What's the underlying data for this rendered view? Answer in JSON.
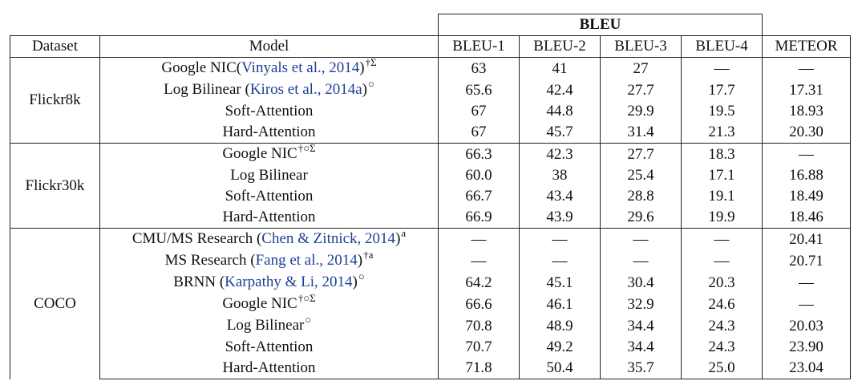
{
  "table": {
    "group_header": "BLEU",
    "columns": [
      "Dataset",
      "Model",
      "BLEU-1",
      "BLEU-2",
      "BLEU-3",
      "BLEU-4",
      "METEOR"
    ],
    "sections": [
      {
        "dataset": "Flickr8k",
        "rows": [
          {
            "model": {
              "pre": "Google NIC(",
              "cite": "Vinyals et al., 2014",
              "post": ")",
              "sup": "†Σ"
            },
            "values": [
              "63",
              "41",
              "27",
              "—",
              "—"
            ],
            "bold": [
              false,
              false,
              false,
              false,
              false
            ]
          },
          {
            "model": {
              "pre": "Log Bilinear (",
              "cite": "Kiros et al., 2014a",
              "post": ")",
              "sup": "○"
            },
            "values": [
              "65.6",
              "42.4",
              "27.7",
              "17.7",
              "17.31"
            ],
            "bold": [
              false,
              false,
              false,
              false,
              false
            ]
          },
          {
            "model": {
              "pre": "Soft-Attention",
              "cite": "",
              "post": "",
              "sup": ""
            },
            "values": [
              "67",
              "44.8",
              "29.9",
              "19.5",
              "18.93"
            ],
            "bold": [
              true,
              false,
              false,
              false,
              false
            ]
          },
          {
            "model": {
              "pre": "Hard-Attention",
              "cite": "",
              "post": "",
              "sup": ""
            },
            "values": [
              "67",
              "45.7",
              "31.4",
              "21.3",
              "20.30"
            ],
            "bold": [
              true,
              true,
              true,
              true,
              true
            ]
          }
        ]
      },
      {
        "dataset": "Flickr30k",
        "rows": [
          {
            "model": {
              "pre": "Google NIC",
              "cite": "",
              "post": "",
              "sup": "†○Σ"
            },
            "values": [
              "66.3",
              "42.3",
              "27.7",
              "18.3",
              "—"
            ],
            "bold": [
              false,
              false,
              false,
              false,
              false
            ]
          },
          {
            "model": {
              "pre": "Log Bilinear",
              "cite": "",
              "post": "",
              "sup": ""
            },
            "values": [
              "60.0",
              "38",
              "25.4",
              "17.1",
              "16.88"
            ],
            "bold": [
              false,
              false,
              false,
              false,
              false
            ]
          },
          {
            "model": {
              "pre": "Soft-Attention",
              "cite": "",
              "post": "",
              "sup": ""
            },
            "values": [
              "66.7",
              "43.4",
              "28.8",
              "19.1",
              "18.49"
            ],
            "bold": [
              false,
              false,
              false,
              false,
              true
            ]
          },
          {
            "model": {
              "pre": "Hard-Attention",
              "cite": "",
              "post": "",
              "sup": ""
            },
            "values": [
              "66.9",
              "43.9",
              "29.6",
              "19.9",
              "18.46"
            ],
            "bold": [
              true,
              true,
              true,
              true,
              false
            ]
          }
        ]
      },
      {
        "dataset": "COCO",
        "rows": [
          {
            "model": {
              "pre": "CMU/MS Research (",
              "cite": "Chen & Zitnick, 2014",
              "post": ")",
              "sup": "a"
            },
            "values": [
              "—",
              "—",
              "—",
              "—",
              "20.41"
            ],
            "bold": [
              false,
              false,
              false,
              false,
              false
            ]
          },
          {
            "model": {
              "pre": "MS Research (",
              "cite": "Fang et al., 2014",
              "post": ")",
              "sup": "†a"
            },
            "values": [
              "—",
              "—",
              "—",
              "—",
              "20.71"
            ],
            "bold": [
              false,
              false,
              false,
              false,
              false
            ]
          },
          {
            "model": {
              "pre": "BRNN (",
              "cite": "Karpathy & Li, 2014",
              "post": ")",
              "sup": "○"
            },
            "values": [
              "64.2",
              "45.1",
              "30.4",
              "20.3",
              "—"
            ],
            "bold": [
              false,
              false,
              false,
              false,
              false
            ]
          },
          {
            "model": {
              "pre": "Google NIC",
              "cite": "",
              "post": "",
              "sup": "†○Σ"
            },
            "values": [
              "66.6",
              "46.1",
              "32.9",
              "24.6",
              "—"
            ],
            "bold": [
              false,
              false,
              false,
              false,
              false
            ]
          },
          {
            "model": {
              "pre": "Log Bilinear",
              "cite": "",
              "post": "",
              "sup": "○"
            },
            "values": [
              "70.8",
              "48.9",
              "34.4",
              "24.3",
              "20.03"
            ],
            "bold": [
              false,
              false,
              false,
              false,
              false
            ]
          },
          {
            "model": {
              "pre": "Soft-Attention",
              "cite": "",
              "post": "",
              "sup": ""
            },
            "values": [
              "70.7",
              "49.2",
              "34.4",
              "24.3",
              "23.90"
            ],
            "bold": [
              false,
              false,
              false,
              false,
              true
            ]
          },
          {
            "model": {
              "pre": "Hard-Attention",
              "cite": "",
              "post": "",
              "sup": ""
            },
            "values": [
              "71.8",
              "50.4",
              "35.7",
              "25.0",
              "23.04"
            ],
            "bold": [
              true,
              true,
              true,
              true,
              false
            ]
          }
        ]
      }
    ]
  }
}
